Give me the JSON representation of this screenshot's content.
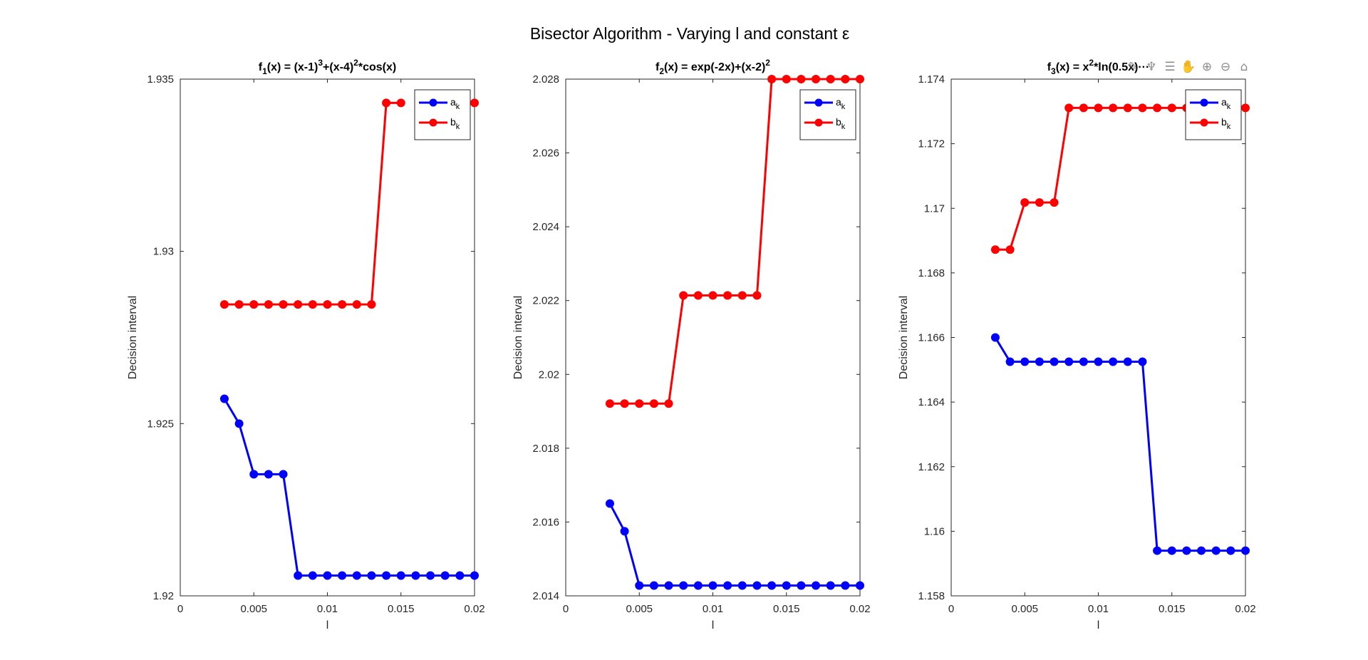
{
  "figure": {
    "title": "Bisector Algorithm - Varying l and constant ε"
  },
  "toolbar": {
    "icons": [
      "brush-icon",
      "data-tips-icon",
      "restore-view-icon",
      "pan-icon",
      "zoom-in-icon",
      "zoom-out-icon",
      "home-icon"
    ]
  },
  "chart_data": [
    {
      "type": "line",
      "title": "f1(x) = (x-1)^3+(x-4)^2*cos(x)",
      "title_parts": {
        "a": "f",
        "a_sub": "1",
        "b": "(x) = (x-1)",
        "b_sup": "3",
        "c": "+(x-4)",
        "c_sup": "2",
        "d": "*cos(x)"
      },
      "xlabel": "l",
      "ylabel": "Decision interval",
      "xlim": [
        0,
        0.02
      ],
      "ylim": [
        1.92,
        1.935
      ],
      "xticks": [
        0,
        0.005,
        0.01,
        0.015,
        0.02
      ],
      "xtick_labels": [
        "0",
        "0.005",
        "0.01",
        "0.015",
        "0.02"
      ],
      "yticks": [
        1.92,
        1.925,
        1.93,
        1.935
      ],
      "ytick_labels": [
        "1.92",
        "1.925",
        "1.93",
        "1.935"
      ],
      "legend_position": "top-right",
      "x": [
        0.003,
        0.004,
        0.005,
        0.006,
        0.007,
        0.008,
        0.009,
        0.01,
        0.011,
        0.012,
        0.013,
        0.014,
        0.015,
        0.016,
        0.017,
        0.018,
        0.019,
        0.02
      ],
      "series": [
        {
          "name": "a_k",
          "label_main": "a",
          "label_sub": "k",
          "color": "#0000ff",
          "values": [
            1.92572,
            1.925,
            1.92353,
            1.92353,
            1.92353,
            1.92059,
            1.92059,
            1.92059,
            1.92059,
            1.92059,
            1.92059,
            1.92059,
            1.92059,
            1.92059,
            1.92059,
            1.92059,
            1.92059,
            1.92059
          ]
        },
        {
          "name": "b_k",
          "label_main": "b",
          "label_sub": "k",
          "color": "#ff0000",
          "values": [
            1.92846,
            1.92846,
            1.92846,
            1.92846,
            1.92846,
            1.92846,
            1.92846,
            1.92846,
            1.92846,
            1.92846,
            1.92846,
            1.93431,
            1.93431,
            null,
            null,
            null,
            null,
            1.93431
          ]
        }
      ]
    },
    {
      "type": "line",
      "title": "f2(x) = exp(-2x)+(x-2)^2",
      "title_parts": {
        "a": "f",
        "a_sub": "2",
        "b": "(x) = exp(-2x)+(x-2)",
        "b_sup": "2",
        "c": "",
        "c_sup": "",
        "d": ""
      },
      "xlabel": "l",
      "ylabel": "Decision interval",
      "xlim": [
        0,
        0.02
      ],
      "ylim": [
        2.014,
        2.028
      ],
      "xticks": [
        0,
        0.005,
        0.01,
        0.015,
        0.02
      ],
      "xtick_labels": [
        "0",
        "0.005",
        "0.01",
        "0.015",
        "0.02"
      ],
      "yticks": [
        2.014,
        2.016,
        2.018,
        2.02,
        2.022,
        2.024,
        2.026,
        2.028
      ],
      "ytick_labels": [
        "2.014",
        "2.016",
        "2.018",
        "2.02",
        "2.022",
        "2.024",
        "2.026",
        "2.028"
      ],
      "legend_position": "top-right",
      "x": [
        0.003,
        0.004,
        0.005,
        0.006,
        0.007,
        0.008,
        0.009,
        0.01,
        0.011,
        0.012,
        0.013,
        0.014,
        0.015,
        0.016,
        0.017,
        0.018,
        0.019,
        0.02
      ],
      "series": [
        {
          "name": "a_k",
          "label_main": "a",
          "label_sub": "k",
          "color": "#0000ff",
          "values": [
            2.0165,
            2.01575,
            2.01428,
            2.01428,
            2.01428,
            2.01428,
            2.01428,
            2.01428,
            2.01428,
            2.01428,
            2.01428,
            2.01428,
            2.01428,
            2.01428,
            2.01428,
            2.01428,
            2.01428,
            2.01428
          ]
        },
        {
          "name": "b_k",
          "label_main": "b",
          "label_sub": "k",
          "color": "#ff0000",
          "values": [
            2.01921,
            2.01921,
            2.01921,
            2.01921,
            2.01921,
            2.02214,
            2.02214,
            2.02214,
            2.02214,
            2.02214,
            2.02214,
            2.028,
            2.028,
            2.028,
            2.028,
            2.028,
            2.028,
            2.028
          ]
        }
      ]
    },
    {
      "type": "line",
      "title": "f3(x) = x^2*ln(0.5x)…",
      "title_parts": {
        "a": "f",
        "a_sub": "3",
        "b": "(x) = x",
        "b_sup": "2",
        "c": "*ln(0.5x)···",
        "c_sup": "",
        "d": ""
      },
      "xlabel": "l",
      "ylabel": "Decision interval",
      "xlim": [
        0,
        0.02
      ],
      "ylim": [
        1.158,
        1.174
      ],
      "xticks": [
        0,
        0.005,
        0.01,
        0.015,
        0.02
      ],
      "xtick_labels": [
        "0",
        "0.005",
        "0.01",
        "0.015",
        "0.02"
      ],
      "yticks": [
        1.158,
        1.16,
        1.162,
        1.164,
        1.166,
        1.168,
        1.17,
        1.172,
        1.174
      ],
      "ytick_labels": [
        "1.158",
        "1.16",
        "1.162",
        "1.164",
        "1.166",
        "1.168",
        "1.17",
        "1.172",
        "1.174"
      ],
      "legend_position": "top-right",
      "x": [
        0.003,
        0.004,
        0.005,
        0.006,
        0.007,
        0.008,
        0.009,
        0.01,
        0.011,
        0.012,
        0.013,
        0.014,
        0.015,
        0.016,
        0.017,
        0.018,
        0.019,
        0.02
      ],
      "series": [
        {
          "name": "a_k",
          "label_main": "a",
          "label_sub": "k",
          "color": "#0000ff",
          "values": [
            1.166,
            1.16525,
            1.16525,
            1.16525,
            1.16525,
            1.16525,
            1.16525,
            1.16525,
            1.16525,
            1.16525,
            1.16525,
            1.1594,
            1.1594,
            1.1594,
            1.1594,
            1.1594,
            1.1594,
            1.1594
          ]
        },
        {
          "name": "b_k",
          "label_main": "b",
          "label_sub": "k",
          "color": "#ff0000",
          "values": [
            1.16872,
            1.16872,
            1.17018,
            1.17018,
            1.17018,
            1.17311,
            1.17311,
            1.17311,
            1.17311,
            1.17311,
            1.17311,
            1.17311,
            1.17311,
            1.17311,
            1.17311,
            null,
            null,
            1.17311
          ]
        }
      ]
    }
  ]
}
